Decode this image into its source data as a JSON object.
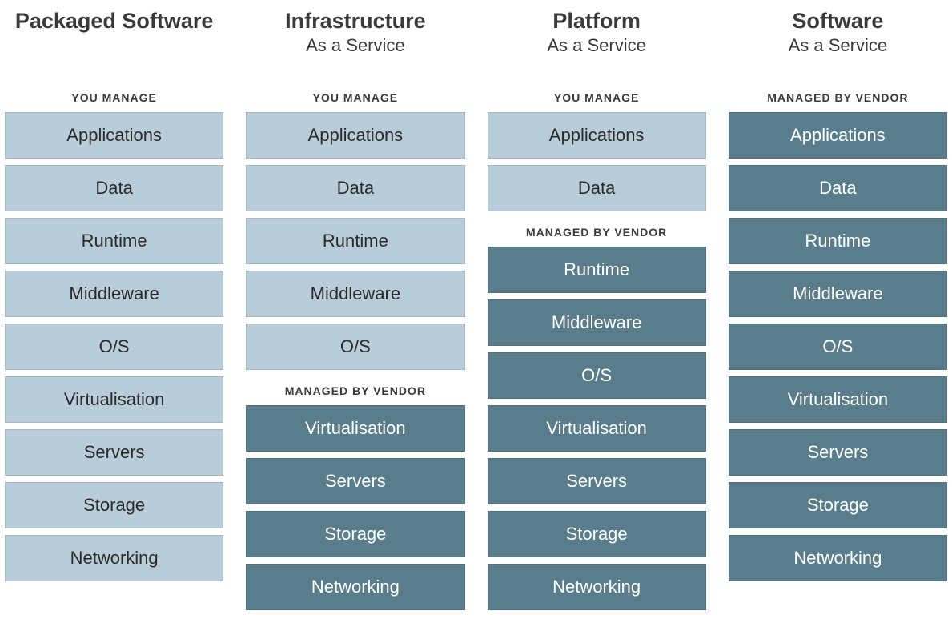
{
  "labels": {
    "you_manage": "YOU MANAGE",
    "managed_by_vendor": "MANAGED BY VENDOR"
  },
  "styling": {
    "background_color": "#ffffff",
    "you_manage_bg": "#b8cdd9",
    "you_manage_text": "#2a2a2a",
    "vendor_bg": "#5a7d8c",
    "vendor_text": "#ffffff",
    "header_color": "#3a3a3a",
    "section_label_color": "#3a3a3a",
    "title_fontsize": 27,
    "subtitle_fontsize": 22,
    "section_label_fontsize": 14,
    "layer_fontsize": 22,
    "layer_height": 58,
    "layer_gap": 8,
    "column_gap": 28
  },
  "columns": [
    {
      "title": "Packaged Software",
      "subtitle": "",
      "sections": [
        {
          "label_key": "you_manage",
          "style": "you",
          "layers": [
            "Applications",
            "Data",
            "Runtime",
            "Middleware",
            "O/S",
            "Virtualisation",
            "Servers",
            "Storage",
            "Networking"
          ]
        }
      ]
    },
    {
      "title": "Infrastructure",
      "subtitle": "As a Service",
      "sections": [
        {
          "label_key": "you_manage",
          "style": "you",
          "layers": [
            "Applications",
            "Data",
            "Runtime",
            "Middleware",
            "O/S"
          ]
        },
        {
          "label_key": "managed_by_vendor",
          "style": "vendor",
          "layers": [
            "Virtualisation",
            "Servers",
            "Storage",
            "Networking"
          ]
        }
      ]
    },
    {
      "title": "Platform",
      "subtitle": "As a Service",
      "sections": [
        {
          "label_key": "you_manage",
          "style": "you",
          "layers": [
            "Applications",
            "Data"
          ]
        },
        {
          "label_key": "managed_by_vendor",
          "style": "vendor",
          "layers": [
            "Runtime",
            "Middleware",
            "O/S",
            "Virtualisation",
            "Servers",
            "Storage",
            "Networking"
          ]
        }
      ]
    },
    {
      "title": "Software",
      "subtitle": "As a Service",
      "sections": [
        {
          "label_key": "managed_by_vendor",
          "style": "vendor",
          "layers": [
            "Applications",
            "Data",
            "Runtime",
            "Middleware",
            "O/S",
            "Virtualisation",
            "Servers",
            "Storage",
            "Networking"
          ]
        }
      ]
    }
  ]
}
